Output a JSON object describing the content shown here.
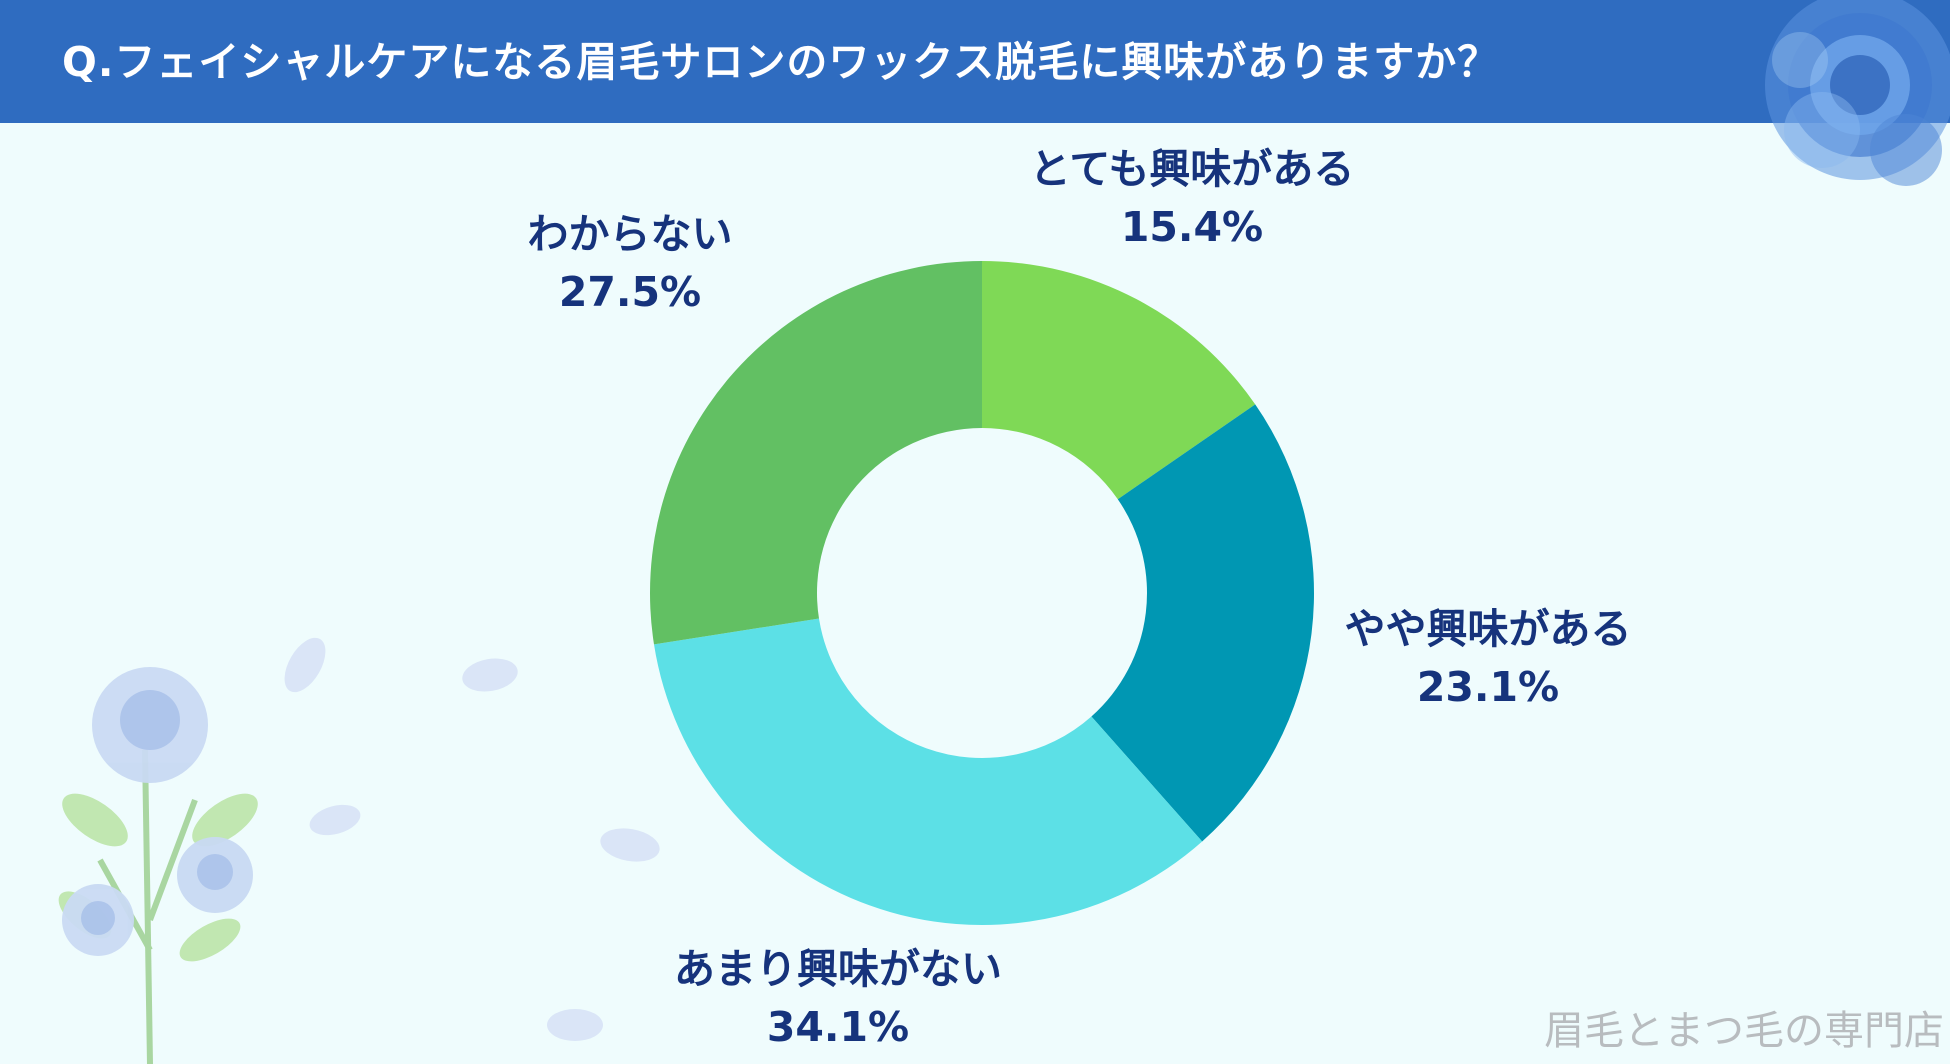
{
  "title": "Q.フェイシャルケアになる眉毛サロンのワックス脱毛に興味がありますか？",
  "watermark": "眉毛とまつ毛の専門店",
  "colors": {
    "header": "#2f6cc0",
    "background": "#effcfd",
    "label_text": "#16337c",
    "slice_1": "#7fd956",
    "slice_2": "#0097b3",
    "slice_3": "#5ce0e6",
    "slice_4": "#62c063"
  },
  "chart_data": {
    "type": "pie",
    "donut": true,
    "categories": [
      "とても興味がある",
      "やや興味がある",
      "あまり興味がない",
      "わからない"
    ],
    "values": [
      15.4,
      23.1,
      34.1,
      27.5
    ],
    "value_labels": [
      "15.4%",
      "23.1%",
      "34.1%",
      "27.5%"
    ],
    "start": "top",
    "direction": "clockwise"
  },
  "decorations": [
    "blue-rose",
    "rose-bouquet",
    "petals"
  ]
}
